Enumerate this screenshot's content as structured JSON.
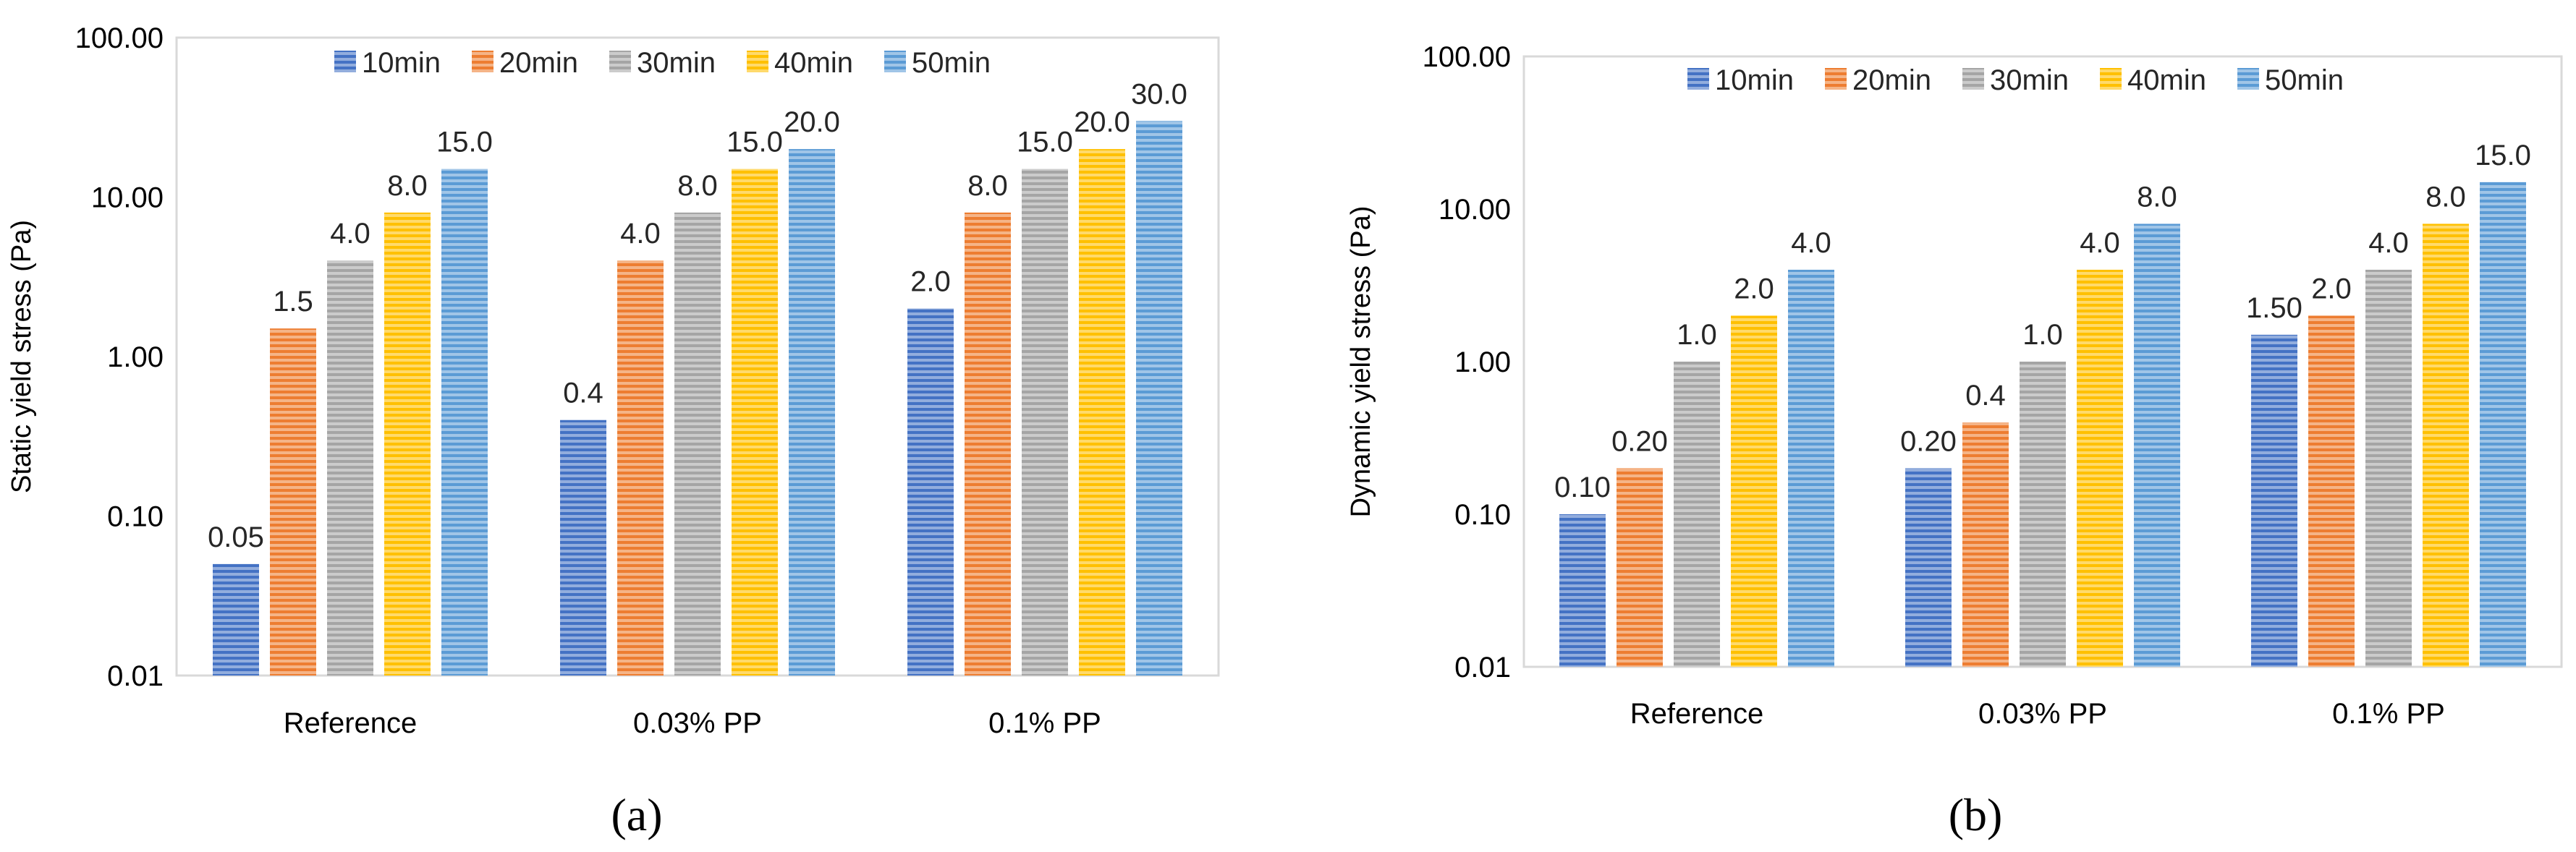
{
  "series_colors": [
    "#4472C4",
    "#ED7D31",
    "#A5A5A5",
    "#FFC000",
    "#5B9BD5"
  ],
  "chart_data": [
    {
      "type": "bar",
      "scale": "log",
      "title": "",
      "xlabel": "",
      "ylabel": "Static yield stress (Pa)",
      "ylim": [
        0.01,
        100
      ],
      "yticks": [
        "0.01",
        "0.10",
        "1.00",
        "10.00",
        "100.00"
      ],
      "legend_position": "top",
      "caption": "(a)",
      "categories": [
        "Reference",
        "0.03% PP",
        "0.1% PP"
      ],
      "series": [
        {
          "name": "10min",
          "values": [
            0.05,
            0.4,
            2.0
          ],
          "labels": [
            "0.05",
            "0.4",
            "2.0"
          ]
        },
        {
          "name": "20min",
          "values": [
            1.5,
            4.0,
            8.0
          ],
          "labels": [
            "1.5",
            "4.0",
            "8.0"
          ]
        },
        {
          "name": "30min",
          "values": [
            4.0,
            8.0,
            15.0
          ],
          "labels": [
            "4.0",
            "8.0",
            "15.0"
          ]
        },
        {
          "name": "40min",
          "values": [
            8.0,
            15.0,
            20.0
          ],
          "labels": [
            "8.0",
            "15.0",
            "20.0"
          ]
        },
        {
          "name": "50min",
          "values": [
            15.0,
            20.0,
            30.0
          ],
          "labels": [
            "15.0",
            "20.0",
            "30.0"
          ]
        }
      ]
    },
    {
      "type": "bar",
      "scale": "log",
      "title": "",
      "xlabel": "",
      "ylabel": "Dynamic yield stress (Pa)",
      "ylim": [
        0.01,
        100
      ],
      "yticks": [
        "0.01",
        "0.10",
        "1.00",
        "10.00",
        "100.00"
      ],
      "legend_position": "top",
      "caption": "(b)",
      "categories": [
        "Reference",
        "0.03% PP",
        "0.1% PP"
      ],
      "series": [
        {
          "name": "10min",
          "values": [
            0.1,
            0.2,
            1.5
          ],
          "labels": [
            "0.10",
            "0.20",
            "1.50"
          ]
        },
        {
          "name": "20min",
          "values": [
            0.2,
            0.4,
            2.0
          ],
          "labels": [
            "0.20",
            "0.4",
            "2.0"
          ]
        },
        {
          "name": "30min",
          "values": [
            1.0,
            1.0,
            4.0
          ],
          "labels": [
            "1.0",
            "1.0",
            "4.0"
          ]
        },
        {
          "name": "40min",
          "values": [
            2.0,
            4.0,
            8.0
          ],
          "labels": [
            "2.0",
            "4.0",
            "8.0"
          ]
        },
        {
          "name": "50min",
          "values": [
            4.0,
            8.0,
            15.0
          ],
          "labels": [
            "4.0",
            "8.0",
            "15.0"
          ]
        }
      ]
    }
  ]
}
